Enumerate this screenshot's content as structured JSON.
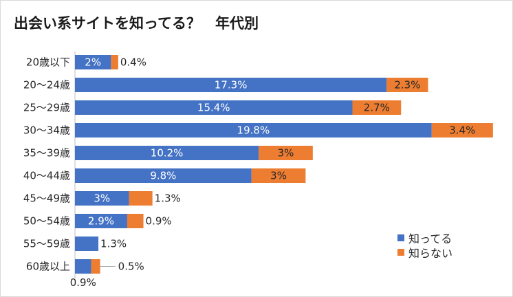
{
  "chart_data": {
    "type": "bar",
    "orientation": "horizontal",
    "stacked": true,
    "title": "出会い系サイトを知ってる？　年代別",
    "categories": [
      "20歳以下",
      "20～24歳",
      "25～29歳",
      "30～34歳",
      "35～39歳",
      "40～44歳",
      "45～49歳",
      "50～54歳",
      "55～59歳",
      "60歳以上"
    ],
    "series": [
      {
        "name": "知ってる",
        "color": "#4472c4",
        "values": [
          2,
          17.3,
          15.4,
          19.8,
          10.2,
          9.8,
          3,
          2.9,
          1.3,
          0.9
        ],
        "labels": [
          "2%",
          "17.3%",
          "15.4%",
          "19.8%",
          "10.2%",
          "9.8%",
          "3%",
          "2.9%",
          "1.3%",
          "0.9%"
        ]
      },
      {
        "name": "知らない",
        "color": "#ed7d31",
        "values": [
          0.4,
          2.3,
          2.7,
          3.4,
          3,
          3,
          1.3,
          0.9,
          0,
          0.5
        ],
        "labels": [
          "0.4%",
          "2.3%",
          "2.7%",
          "3.4%",
          "3%",
          "3%",
          "1.3%",
          "0.9%",
          "",
          "0.5%"
        ]
      }
    ],
    "legend_position": "bottom-right",
    "grid": false
  }
}
